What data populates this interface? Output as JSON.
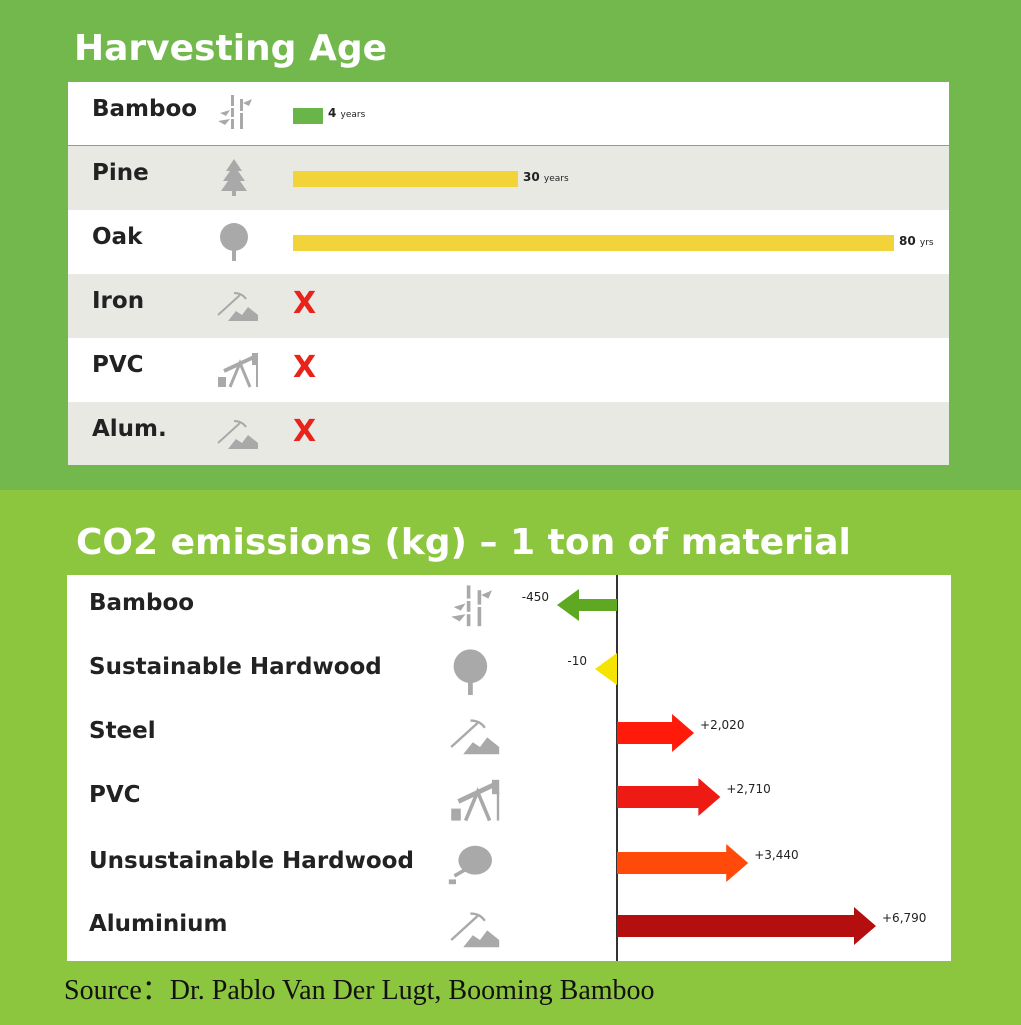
{
  "chart_data": [
    {
      "type": "bar",
      "title": "Harvesting Age",
      "categories": [
        "Bamboo",
        "Pine",
        "Oak",
        "Iron",
        "PVC",
        "Alum."
      ],
      "values": [
        4,
        30,
        80,
        null,
        null,
        null
      ],
      "value_labels": [
        {
          "num": "4",
          "unit": "years"
        },
        {
          "num": "30",
          "unit": "years"
        },
        {
          "num": "80",
          "unit": "yrs"
        }
      ],
      "not_applicable_mark": "X",
      "icons": [
        "bamboo-icon",
        "pine-tree-icon",
        "oak-tree-icon",
        "mining-icon",
        "oil-pump-icon",
        "mining-icon"
      ],
      "colors": {
        "bamboo": "#6ab54a",
        "wood": "#f2d33a",
        "x": "#e8231b"
      }
    },
    {
      "type": "bar",
      "title": "CO2 emissions (kg) – 1 ton of material",
      "categories": [
        "Bamboo",
        "Sustainable Hardwood",
        "Steel",
        "PVC",
        "Unsustainable Hardwood",
        "Aluminium"
      ],
      "values": [
        -450,
        -10,
        2020,
        2710,
        3440,
        6790
      ],
      "value_labels": [
        "-450",
        "-10",
        "+2,020",
        "+2,710",
        "+3,440",
        "+6,790"
      ],
      "icons": [
        "bamboo-icon",
        "round-tree-icon",
        "mining-icon",
        "oil-pump-icon",
        "fallen-tree-icon",
        "mining-icon"
      ],
      "colors": [
        "#5ea822",
        "#f5e400",
        "#ff1a0a",
        "#ee1a14",
        "#ff4a0a",
        "#b50e0e"
      ]
    }
  ],
  "source": "Source：Dr. Pablo Van Der Lugt, Booming Bamboo"
}
